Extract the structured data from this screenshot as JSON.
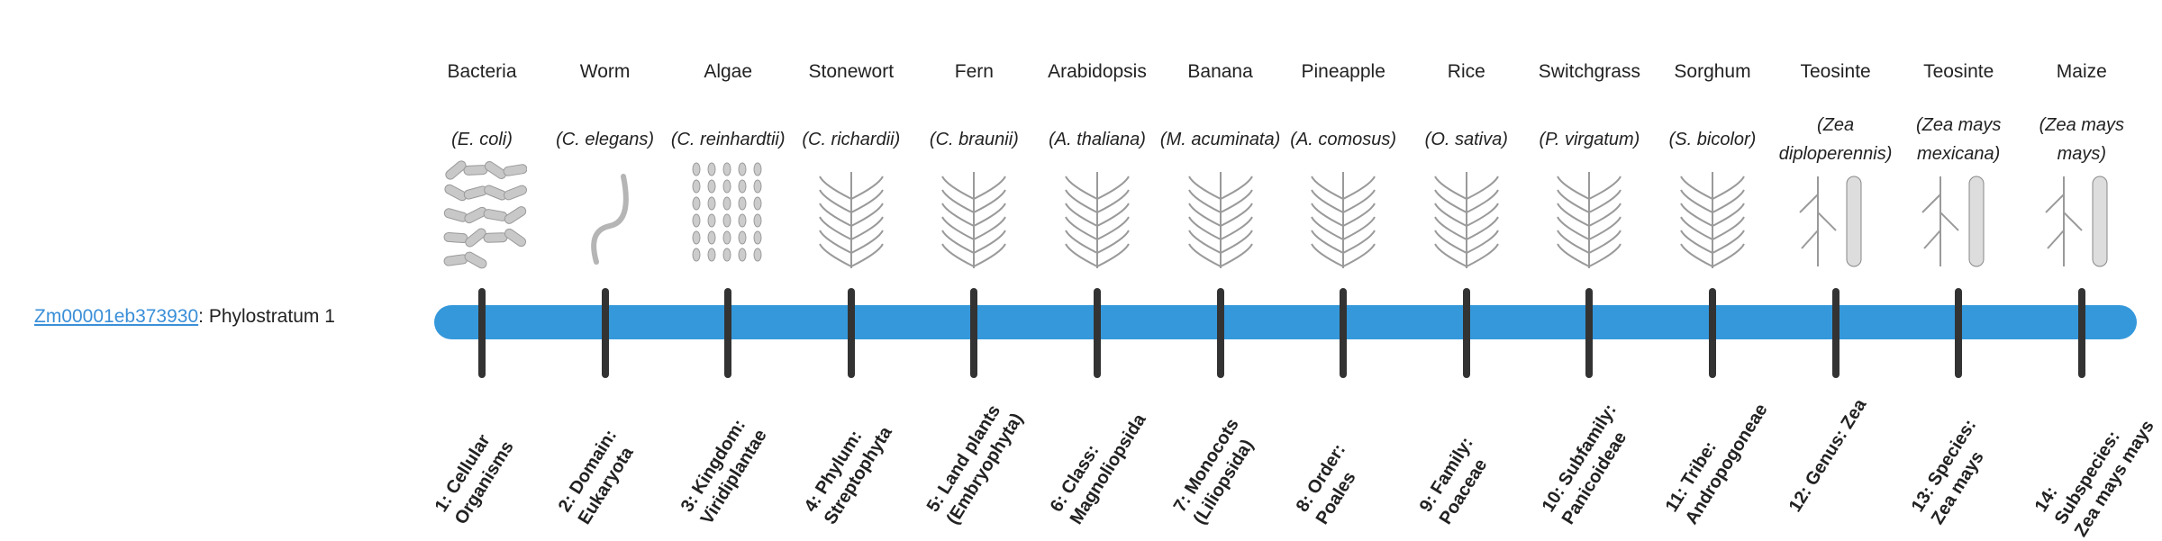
{
  "gene": {
    "id": "Zm00001eb373930",
    "suffix": ": Phylostratum 1"
  },
  "colors": {
    "bar": "#3598db",
    "link": "#3a8fd8",
    "tick": "#333333"
  },
  "strata": [
    {
      "common": "Bacteria",
      "scientific": "(E. coli)",
      "label": "1: Cellular Organisms",
      "icon": "bacteria-icon"
    },
    {
      "common": "Worm",
      "scientific": "(C. elegans)",
      "label": "2: Domain: Eukaryota",
      "icon": "worm-icon"
    },
    {
      "common": "Algae",
      "scientific": "(C. reinhardtii)",
      "label": "3: Kingdom: Viridiplantae",
      "icon": "algae-icon"
    },
    {
      "common": "Stonewort",
      "scientific": "(C. richardii)",
      "label": "4: Phylum: Streptophyta",
      "icon": "stonewort-icon"
    },
    {
      "common": "Fern",
      "scientific": "(C. braunii)",
      "label": "5: Land plants (Embryophyta)",
      "icon": "fern-icon"
    },
    {
      "common": "Arabidopsis",
      "scientific": "(A. thaliana)",
      "label": "6: Class: Magnoliopsida",
      "icon": "arabidopsis-icon"
    },
    {
      "common": "Banana",
      "scientific": "(M. acuminata)",
      "label": "7: Monocots (Liliopsida)",
      "icon": "banana-icon"
    },
    {
      "common": "Pineapple",
      "scientific": "(A. comosus)",
      "label": "8: Order: Poales",
      "icon": "pineapple-icon"
    },
    {
      "common": "Rice",
      "scientific": "(O. sativa)",
      "label": "9: Family: Poaceae",
      "icon": "rice-icon"
    },
    {
      "common": "Switchgrass",
      "scientific": "(P. virgatum)",
      "label": "10: Subfamily: Panicoideae",
      "icon": "switchgrass-icon"
    },
    {
      "common": "Sorghum",
      "scientific": "(S. bicolor)",
      "label": "11: Tribe: Andropogoneae",
      "icon": "sorghum-icon"
    },
    {
      "common": "Teosinte",
      "scientific": "(Zea diploperennis)",
      "label": "12: Genus: Zea",
      "icon": "teosinte-icon"
    },
    {
      "common": "Teosinte",
      "scientific": "(Zea mays mexicana)",
      "label": "13: Species: Zea mays",
      "icon": "teosinte-mexicana-icon"
    },
    {
      "common": "Maize",
      "scientific": "(Zea mays mays)",
      "label": "14: Subspecies: Zea mays mays",
      "icon": "maize-icon"
    }
  ]
}
